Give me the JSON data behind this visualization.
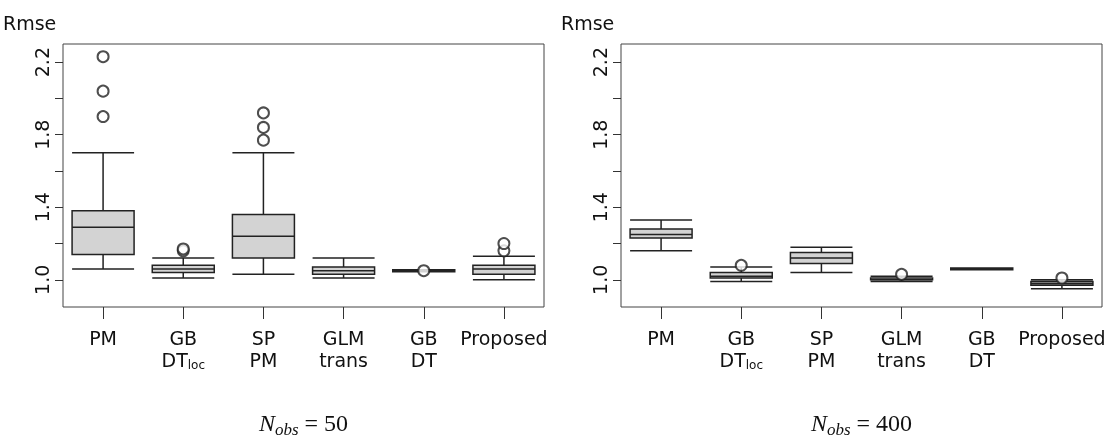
{
  "chart_data": [
    {
      "type": "box",
      "ylabel": "Rmse",
      "xlabel": "N$_{obs}$ = 50",
      "categories": [
        "PM",
        "GB\nDT$_{loc}$",
        "SP\nPM",
        "GLM\ntrans",
        "GB\nDT",
        "Proposed"
      ],
      "color": "#d3d3d3",
      "ylim": [
        0.85,
        2.3
      ],
      "yticks": [
        {
          "value": 1.0,
          "label": "1.0"
        },
        {
          "value": 1.2,
          "label": null
        },
        {
          "value": 1.4,
          "label": "1.4"
        },
        {
          "value": 1.6,
          "label": null
        },
        {
          "value": 1.8,
          "label": "1.8"
        },
        {
          "value": 2.0,
          "label": null
        },
        {
          "value": 2.2,
          "label": "2.2"
        }
      ],
      "marker": "circle",
      "boxes": [
        {
          "low": 1.06,
          "q1": 1.14,
          "median": 1.29,
          "q3": 1.38,
          "high": 1.7,
          "outliers": [
            1.9,
            2.04,
            2.23
          ]
        },
        {
          "low": 1.01,
          "q1": 1.04,
          "median": 1.06,
          "q3": 1.08,
          "high": 1.12,
          "outliers": [
            1.16,
            1.17
          ]
        },
        {
          "low": 1.03,
          "q1": 1.12,
          "median": 1.24,
          "q3": 1.36,
          "high": 1.7,
          "outliers": [
            1.77,
            1.84,
            1.92
          ]
        },
        {
          "low": 1.01,
          "q1": 1.03,
          "median": 1.05,
          "q3": 1.07,
          "high": 1.12
        },
        {
          "low": 1.045,
          "q1": 1.045,
          "median": 1.05,
          "q3": 1.055,
          "high": 1.055,
          "outliers": [
            1.05
          ]
        },
        {
          "low": 1.0,
          "q1": 1.03,
          "median": 1.06,
          "q3": 1.08,
          "high": 1.13,
          "outliers": [
            1.16,
            1.2
          ]
        }
      ]
    },
    {
      "type": "box",
      "ylabel": "Rmse",
      "xlabel": "N$_{obs}$ = 400",
      "categories": [
        "PM",
        "GB\nDT$_{loc}$",
        "SP\nPM",
        "GLM\ntrans",
        "GB\nDT",
        "Proposed"
      ],
      "color": "#d3d3d3",
      "ylim": [
        0.85,
        2.3
      ],
      "yticks": [
        {
          "value": 1.0,
          "label": "1.0"
        },
        {
          "value": 1.2,
          "label": null
        },
        {
          "value": 1.4,
          "label": "1.4"
        },
        {
          "value": 1.6,
          "label": null
        },
        {
          "value": 1.8,
          "label": "1.8"
        },
        {
          "value": 2.0,
          "label": null
        },
        {
          "value": 2.2,
          "label": "2.2"
        }
      ],
      "marker": "circle",
      "boxes": [
        {
          "low": 1.16,
          "q1": 1.23,
          "median": 1.25,
          "q3": 1.28,
          "high": 1.33
        },
        {
          "low": 0.99,
          "q1": 1.01,
          "median": 1.02,
          "q3": 1.04,
          "high": 1.07,
          "outliers": [
            1.08
          ]
        },
        {
          "low": 1.04,
          "q1": 1.09,
          "median": 1.12,
          "q3": 1.15,
          "high": 1.18
        },
        {
          "low": 0.99,
          "q1": 1.0,
          "median": 1.0,
          "q3": 1.01,
          "high": 1.02,
          "outliers": [
            1.03
          ]
        },
        {
          "low": 1.055,
          "q1": 1.055,
          "median": 1.06,
          "q3": 1.065,
          "high": 1.065
        },
        {
          "low": 0.95,
          "q1": 0.97,
          "median": 0.98,
          "q3": 0.99,
          "high": 1.0,
          "outliers": [
            1.01
          ]
        }
      ]
    }
  ]
}
